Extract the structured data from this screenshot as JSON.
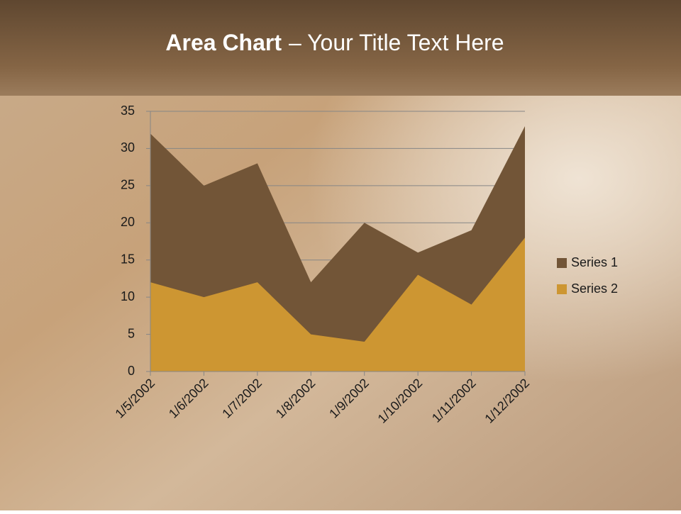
{
  "chart_data": {
    "type": "area",
    "title": {
      "emphasis": "Area Chart",
      "text": "– Your Title Text Here"
    },
    "categories": [
      "1/5/2002",
      "1/6/2002",
      "1/7/2002",
      "1/8/2002",
      "1/9/2002",
      "1/10/2002",
      "1/11/2002",
      "1/12/2002"
    ],
    "series": [
      {
        "name": "Series 1",
        "color": "#725537",
        "values": [
          32,
          25,
          28,
          12,
          20,
          16,
          19,
          33
        ]
      },
      {
        "name": "Series 2",
        "color": "#cd9632",
        "values": [
          12,
          10,
          12,
          5,
          4,
          13,
          9,
          18
        ]
      }
    ],
    "ylim": [
      0,
      35
    ],
    "yticks": [
      0,
      5,
      10,
      15,
      20,
      25,
      30,
      35
    ],
    "grid": true,
    "legend": "right"
  }
}
